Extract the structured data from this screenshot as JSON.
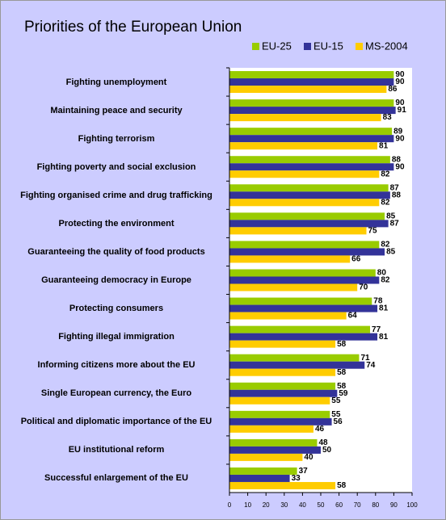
{
  "chart_data": {
    "type": "hbar",
    "title": "Priorities of the European Union",
    "categories": [
      "Fighting unemployment",
      "Maintaining peace and security",
      "Fighting terrorism",
      "Fighting poverty and social exclusion",
      "Fighting organised crime and drug trafficking",
      "Protecting the environment",
      "Guaranteeing the quality of food products",
      "Guaranteeing democracy in Europe",
      "Protecting consumers",
      "Fighting illegal immigration",
      "Informing citizens more about the EU",
      "Single European currency, the Euro",
      "Political and diplomatic importance of the EU",
      "EU institutional reform",
      "Successful enlargement of the EU"
    ],
    "series": [
      {
        "name": "EU-25",
        "color": "#99cc00",
        "values": [
          90,
          90,
          89,
          88,
          87,
          85,
          82,
          80,
          78,
          77,
          71,
          58,
          55,
          48,
          37
        ]
      },
      {
        "name": "EU-15",
        "color": "#333399",
        "values": [
          90,
          91,
          90,
          90,
          88,
          87,
          85,
          82,
          81,
          81,
          74,
          59,
          56,
          50,
          33
        ]
      },
      {
        "name": "MS-2004",
        "color": "#ffcc00",
        "values": [
          86,
          83,
          81,
          82,
          82,
          75,
          66,
          70,
          64,
          58,
          58,
          55,
          46,
          40,
          58
        ]
      }
    ],
    "xlim": [
      0,
      100
    ],
    "xticks": [
      0,
      10,
      20,
      30,
      40,
      50,
      60,
      70,
      80,
      90,
      100
    ]
  }
}
